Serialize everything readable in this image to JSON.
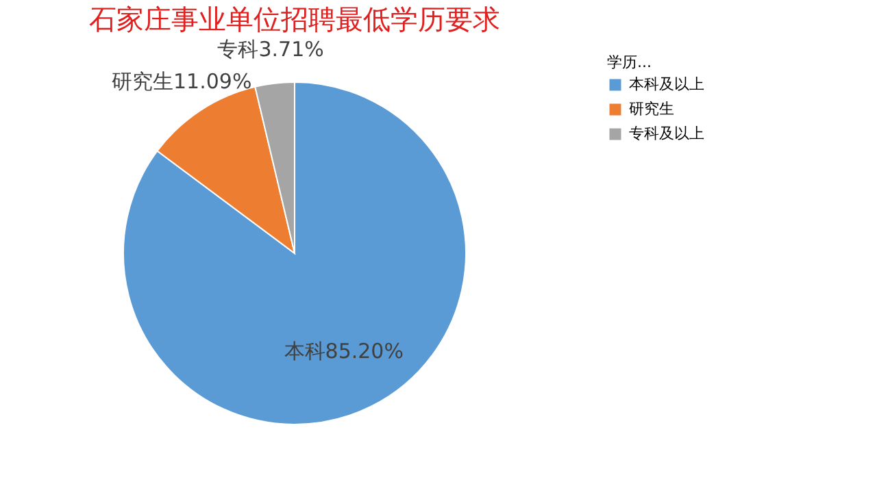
{
  "chart_data": {
    "type": "pie",
    "title": "石家庄事业单位招聘最低学历要求",
    "categories": [
      "本科及以上",
      "研究生",
      "专科及以上"
    ],
    "values": [
      85.2,
      11.09,
      3.71
    ],
    "value_labels": [
      "本科85.20%",
      "研究生11.09%",
      "专科3.71%"
    ],
    "colors": [
      "#5b9bd5",
      "#ed7d31",
      "#a5a5a5"
    ],
    "legend_title": "学历...",
    "legend": "right"
  }
}
